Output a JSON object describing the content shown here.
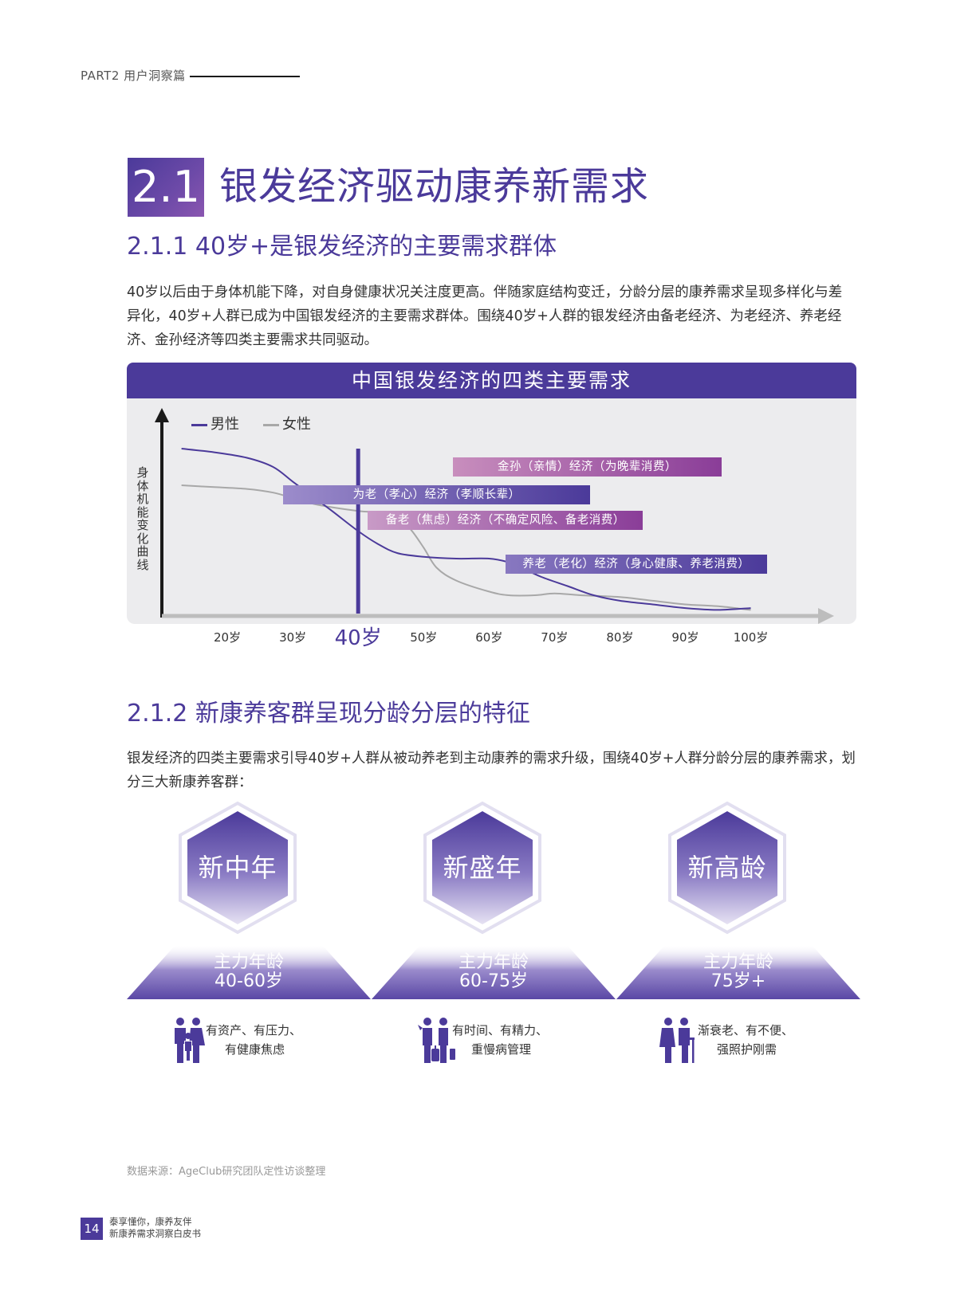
{
  "header": {
    "label": "PART2 用户洞察篇"
  },
  "section": {
    "number": "2.1",
    "title": "银发经济驱动康养新需求"
  },
  "sub1": {
    "title": "2.1.1 40岁+是银发经济的主要需求群体",
    "para": "40岁以后由于身体机能下降，对自身健康状况关注度更高。伴随家庭结构变迁，分龄分层的康养需求呈现多样化与差异化，40岁+人群已成为中国银发经济的主要需求群体。围绕40岁+人群的银发经济由备老经济、为老经济、养老经济、金孙经济等四类主要需求共同驱动。"
  },
  "chart": {
    "title": "中国银发经济的四类主要需求",
    "ylabel": "身体机能变化曲线",
    "legend": [
      {
        "name": "男性",
        "color": "#4b3a9a"
      },
      {
        "name": "女性",
        "color": "#a8a8a8"
      }
    ]
  },
  "chart_data": {
    "type": "line",
    "title": "中国银发经济的四类主要需求",
    "ylabel": "身体机能变化曲线",
    "x_ticks": [
      "20岁",
      "30岁",
      "40岁",
      "50岁",
      "60岁",
      "70岁",
      "80岁",
      "90岁",
      "100岁"
    ],
    "x_tick_values": [
      20,
      30,
      40,
      50,
      60,
      70,
      80,
      90,
      100
    ],
    "xlim": [
      10,
      112
    ],
    "ylim": [
      0,
      100
    ],
    "highlight_x": 40,
    "legend_position": "top-left",
    "series": [
      {
        "name": "男性",
        "color": "#4b3a9a",
        "x": [
          13,
          18,
          23,
          27,
          30,
          33,
          36,
          40,
          43,
          46,
          50,
          55,
          60,
          63,
          65,
          68,
          72,
          76,
          80,
          85,
          90,
          95,
          100
        ],
        "y": [
          90,
          88,
          85,
          80,
          72,
          64,
          56,
          45,
          38,
          33,
          31,
          30,
          30,
          28,
          25,
          20,
          15,
          10,
          7,
          5,
          3,
          2,
          3
        ]
      },
      {
        "name": "女性",
        "color": "#a8a8a8",
        "x": [
          13,
          18,
          23,
          27,
          30,
          33,
          36,
          40,
          43,
          46,
          48,
          50,
          52,
          55,
          60,
          63,
          67,
          70,
          74,
          80,
          85,
          90,
          95,
          100
        ],
        "y": [
          70,
          69,
          68,
          66,
          63,
          60,
          58,
          56,
          55,
          52,
          46,
          36,
          25,
          18,
          12,
          10,
          10,
          11,
          10,
          9,
          7,
          5,
          4,
          2
        ]
      }
    ],
    "bands": [
      {
        "label": "金孙（亲情）经济（为晚辈消费）",
        "start": 54.5,
        "end": 95.5,
        "y": 80,
        "from": "#c88ebd",
        "to": "#8a3d98"
      },
      {
        "label": "为老（孝心）经济（孝顺长辈）",
        "start": 28.5,
        "end": 75.5,
        "y": 65,
        "from": "#9c8ccb",
        "to": "#4b3a9a"
      },
      {
        "label": "备老（焦虑）经济（不确定风险、备老消费）",
        "start": 41.5,
        "end": 83.5,
        "y": 51,
        "from": "#c89ac6",
        "to": "#8a3d98"
      },
      {
        "label": "养老（老化）经济（身心健康、养老消费）",
        "start": 62.5,
        "end": 102.5,
        "y": 27,
        "from": "#8878c0",
        "to": "#4b3a9a"
      }
    ]
  },
  "sub2": {
    "title": "2.1.2 新康养客群呈现分龄分层的特征",
    "para": "银发经济的四类主要需求引导40岁+人群从被动养老到主动康养的需求升级，围绕40岁+人群分龄分层的康养需求，划分三大新康养客群："
  },
  "groups": [
    {
      "name": "新中年",
      "age_title": "主力年龄",
      "age_range": "40-60岁",
      "trait1": "有资产、有压力、",
      "trait2": "有健康焦虑",
      "icon": "family-icon"
    },
    {
      "name": "新盛年",
      "age_title": "主力年龄",
      "age_range": "60-75岁",
      "trait1": "有时间、有精力、",
      "trait2": "重慢病管理",
      "icon": "travelers-icon"
    },
    {
      "name": "新高龄",
      "age_title": "主力年龄",
      "age_range": "75岁+",
      "trait1": "渐衰老、有不便、",
      "trait2": "强照护刚需",
      "icon": "elderly-couple-icon"
    }
  ],
  "source": "数据来源：AgeClub研究团队定性访谈整理",
  "footer": {
    "page": "14",
    "line1": "泰享懂你，康养友伴",
    "line2": "新康养需求洞察白皮书"
  }
}
